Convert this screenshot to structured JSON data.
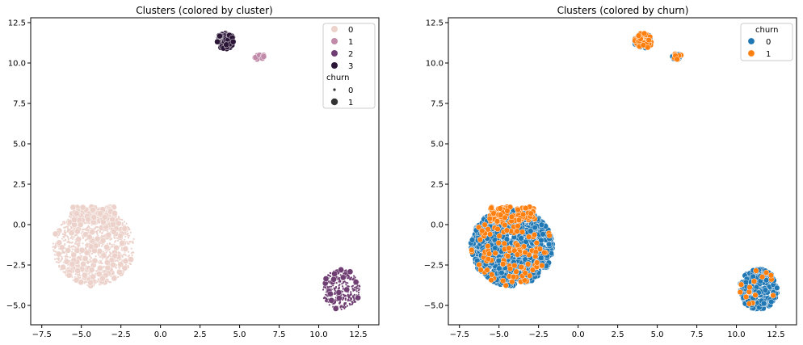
{
  "chart_data": [
    {
      "type": "scatter",
      "title": "Clusters (colored by cluster)",
      "xlabel": "",
      "ylabel": "",
      "xlim": [
        -8.2,
        13.8
      ],
      "ylim": [
        -6.2,
        12.8
      ],
      "xticks": [
        "−7.5",
        "−5.0",
        "−2.5",
        "0.0",
        "2.5",
        "5.0",
        "7.5",
        "10.0",
        "12.5"
      ],
      "yticks": [
        "−5.0",
        "−2.5",
        "0.0",
        "2.5",
        "5.0",
        "7.5",
        "10.0",
        "12.5"
      ],
      "grid": false,
      "legend_position": "top-right",
      "hue_legend": {
        "entries": [
          {
            "label": "0",
            "color": "#ecd2ca"
          },
          {
            "label": "1",
            "color": "#c08aa8"
          },
          {
            "label": "2",
            "color": "#6f3f73"
          },
          {
            "label": "3",
            "color": "#2b1638"
          }
        ]
      },
      "size_legend": {
        "title": "churn",
        "entries": [
          {
            "label": "0",
            "size": "small"
          },
          {
            "label": "1",
            "size": "large"
          }
        ]
      },
      "clusters": [
        {
          "cluster": "0",
          "center": [
            -4.2,
            -1.4
          ],
          "radius": [
            2.6,
            2.4
          ]
        },
        {
          "cluster": "1",
          "center": [
            6.25,
            10.4
          ],
          "radius": [
            0.3,
            0.2
          ]
        },
        {
          "cluster": "2",
          "center": [
            11.4,
            -4.0
          ],
          "radius": [
            1.2,
            1.25
          ]
        },
        {
          "cluster": "3",
          "center": [
            4.1,
            11.35
          ],
          "radius": [
            0.55,
            0.5
          ]
        }
      ]
    },
    {
      "type": "scatter",
      "title": "Clusters (colored by churn)",
      "xlabel": "",
      "ylabel": "",
      "xlim": [
        -8.2,
        13.8
      ],
      "ylim": [
        -6.2,
        12.8
      ],
      "xticks": [
        "−7.5",
        "−5.0",
        "−2.5",
        "0.0",
        "2.5",
        "5.0",
        "7.5",
        "10.0",
        "12.5"
      ],
      "yticks": [
        "−5.0",
        "−2.5",
        "0.0",
        "2.5",
        "5.0",
        "7.5",
        "10.0",
        "12.5"
      ],
      "grid": false,
      "legend_position": "top-right",
      "legend": {
        "title": "churn",
        "entries": [
          {
            "label": "0",
            "color": "#1f77b4"
          },
          {
            "label": "1",
            "color": "#ff7f0e"
          }
        ]
      },
      "clusters": [
        {
          "cluster": "0",
          "center": [
            -4.2,
            -1.4
          ],
          "radius": [
            2.6,
            2.4
          ]
        },
        {
          "cluster": "1",
          "center": [
            6.25,
            10.4
          ],
          "radius": [
            0.3,
            0.2
          ]
        },
        {
          "cluster": "2",
          "center": [
            11.4,
            -4.0
          ],
          "radius": [
            1.2,
            1.25
          ]
        },
        {
          "cluster": "3",
          "center": [
            4.1,
            11.35
          ],
          "radius": [
            0.55,
            0.5
          ]
        }
      ]
    }
  ]
}
